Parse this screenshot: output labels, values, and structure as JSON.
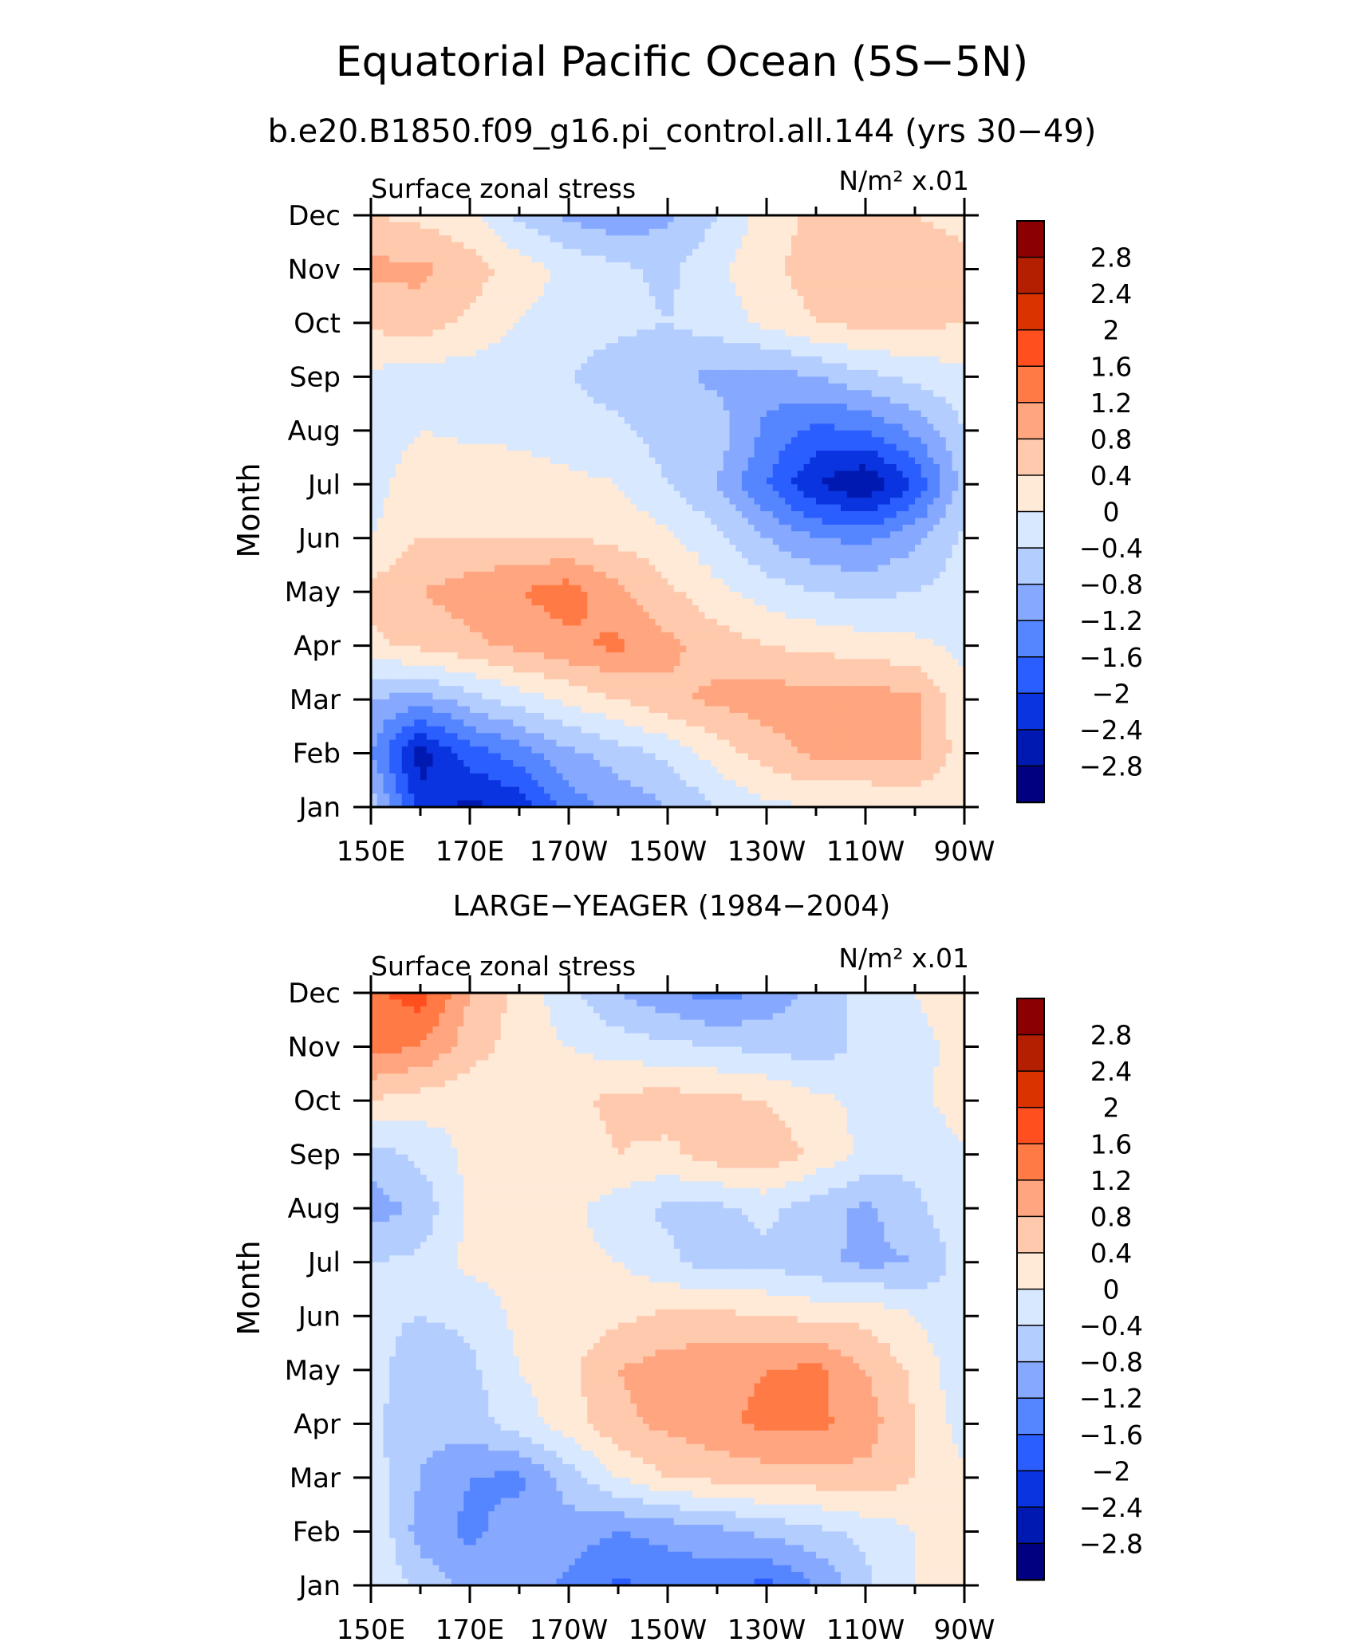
{
  "figure": {
    "title": "Equatorial Pacific Ocean (5S−5N)",
    "subtitle": "b.e20.B1850.f09_g16.pi_control.all.144 (yrs 30−49)"
  },
  "colorscale": {
    "levels": [
      "2.8",
      "2.4",
      "2",
      "1.6",
      "1.2",
      "0.8",
      "0.4",
      "0",
      "−0.4",
      "−0.8",
      "−1.2",
      "−1.6",
      "−2",
      "−2.4",
      "−2.8"
    ],
    "colors": [
      "#8b0000",
      "#b31f00",
      "#db3300",
      "#ff4f1f",
      "#ff7a45",
      "#ffa57f",
      "#ffc9ad",
      "#ffe9d7",
      "#d8e8ff",
      "#b4cdff",
      "#86a9ff",
      "#5585ff",
      "#2b5eff",
      "#0a34e0",
      "#0019b0",
      "#000080"
    ]
  },
  "chart_data": [
    {
      "type": "heatmap",
      "panel_title": "",
      "left_label": "Surface zonal stress",
      "right_label": "N/m² x.01",
      "xlabel": "",
      "ylabel": "Month",
      "x_tick_labels": [
        "150E",
        "170E",
        "170W",
        "150W",
        "130W",
        "110W",
        "90W"
      ],
      "x_ticks_lon_east": [
        150,
        170,
        190,
        210,
        230,
        250,
        270
      ],
      "xlim_lon_east": [
        150,
        270
      ],
      "y_tick_labels": [
        "Jan",
        "Feb",
        "Mar",
        "Apr",
        "May",
        "Jun",
        "Jul",
        "Aug",
        "Sep",
        "Oct",
        "Nov",
        "Dec"
      ],
      "ylim_month": [
        1,
        12
      ],
      "x_lon_east": [
        150,
        160,
        170,
        180,
        190,
        200,
        210,
        220,
        230,
        240,
        250,
        260,
        270
      ],
      "z": [
        [
          -0.5,
          -2.2,
          -2.5,
          -2.3,
          -1.4,
          -1.1,
          -0.8,
          -0.4,
          -0.1,
          0.0,
          0.0,
          0.1,
          0.1
        ],
        [
          -1.2,
          -2.6,
          -1.8,
          -1.4,
          -0.9,
          -0.6,
          -0.3,
          0.2,
          0.6,
          0.9,
          0.9,
          0.9,
          0.2
        ],
        [
          -0.8,
          -1.0,
          -0.6,
          -0.2,
          0.1,
          0.4,
          0.7,
          0.9,
          1.0,
          1.0,
          1.0,
          0.9,
          0.1
        ],
        [
          0.3,
          0.5,
          0.7,
          0.9,
          1.1,
          1.3,
          0.9,
          0.6,
          0.4,
          0.3,
          0.2,
          0.1,
          -0.1
        ],
        [
          0.5,
          0.8,
          1.0,
          1.2,
          1.4,
          0.9,
          0.5,
          0.1,
          -0.2,
          -0.4,
          -0.5,
          -0.4,
          -0.2
        ],
        [
          0.0,
          0.4,
          0.4,
          0.4,
          0.4,
          0.3,
          0.1,
          -0.3,
          -0.8,
          -1.2,
          -1.3,
          -0.9,
          -0.3
        ],
        [
          -0.2,
          0.3,
          0.3,
          0.2,
          0.1,
          0.0,
          -0.4,
          -0.8,
          -1.6,
          -2.4,
          -2.8,
          -2.0,
          -0.6
        ],
        [
          -0.3,
          0.0,
          -0.1,
          -0.1,
          -0.2,
          -0.3,
          -0.6,
          -0.6,
          -1.3,
          -1.7,
          -1.6,
          -1.1,
          -0.4
        ],
        [
          -0.1,
          -0.2,
          -0.2,
          -0.3,
          -0.4,
          -0.6,
          -0.7,
          -0.9,
          -1.0,
          -0.8,
          -0.5,
          -0.3,
          -0.1
        ],
        [
          0.5,
          0.6,
          0.3,
          0.0,
          -0.2,
          -0.3,
          -0.4,
          -0.2,
          0.1,
          0.4,
          0.5,
          0.5,
          0.4
        ],
        [
          0.9,
          0.9,
          0.6,
          0.2,
          -0.1,
          -0.3,
          -0.5,
          -0.1,
          0.3,
          0.6,
          0.7,
          0.6,
          0.5
        ],
        [
          0.4,
          0.3,
          0.1,
          -0.5,
          -0.9,
          -1.1,
          -0.9,
          -0.4,
          0.2,
          0.5,
          0.5,
          0.4,
          0.3
        ]
      ]
    },
    {
      "type": "heatmap",
      "panel_title": "LARGE−YEAGER (1984−2004)",
      "left_label": "Surface zonal stress",
      "right_label": "N/m² x.01",
      "xlabel": "",
      "ylabel": "Month",
      "x_tick_labels": [
        "150E",
        "170E",
        "170W",
        "150W",
        "130W",
        "110W",
        "90W"
      ],
      "x_ticks_lon_east": [
        150,
        170,
        190,
        210,
        230,
        250,
        270
      ],
      "xlim_lon_east": [
        150,
        270
      ],
      "y_tick_labels": [
        "Jan",
        "Feb",
        "Mar",
        "Apr",
        "May",
        "Jun",
        "Jul",
        "Aug",
        "Sep",
        "Oct",
        "Nov",
        "Dec"
      ],
      "ylim_month": [
        1,
        12
      ],
      "x_lon_east": [
        150,
        160,
        170,
        180,
        190,
        200,
        210,
        220,
        230,
        240,
        250,
        260,
        270
      ],
      "z": [
        [
          0.0,
          -0.5,
          -0.9,
          -0.9,
          -1.3,
          -1.7,
          -1.4,
          -1.5,
          -1.7,
          -1.2,
          -0.5,
          0.0,
          0.1
        ],
        [
          0.0,
          -1.0,
          -1.3,
          -1.0,
          -1.0,
          -1.2,
          -1.1,
          -0.9,
          -0.7,
          -0.5,
          -0.3,
          0.0,
          0.1
        ],
        [
          -0.2,
          -0.8,
          -1.2,
          -1.3,
          -0.6,
          0.0,
          0.4,
          0.5,
          0.6,
          0.6,
          0.7,
          0.4,
          0.1
        ],
        [
          -0.3,
          -0.7,
          -0.6,
          -0.2,
          0.2,
          0.7,
          0.9,
          1.1,
          1.3,
          1.3,
          1.0,
          0.4,
          -0.2
        ],
        [
          -0.2,
          -0.7,
          -0.5,
          0.0,
          0.3,
          0.8,
          1.0,
          1.1,
          1.2,
          1.3,
          0.8,
          0.3,
          -0.3
        ],
        [
          -0.3,
          -0.4,
          -0.3,
          0.1,
          0.2,
          0.3,
          0.5,
          0.5,
          0.4,
          0.3,
          0.3,
          0.0,
          -0.3
        ],
        [
          -0.4,
          -0.3,
          0.1,
          0.2,
          0.1,
          0.0,
          -0.3,
          -0.6,
          -0.5,
          -0.7,
          -0.9,
          -0.8,
          -0.2
        ],
        [
          -1.0,
          -0.7,
          0.1,
          0.2,
          0.1,
          -0.2,
          -0.5,
          -0.5,
          -0.3,
          -0.6,
          -0.9,
          -0.5,
          -0.1
        ],
        [
          -0.6,
          -0.3,
          0.1,
          0.2,
          0.2,
          0.4,
          0.3,
          0.6,
          0.7,
          0.3,
          -0.1,
          -0.3,
          -0.1
        ],
        [
          0.4,
          0.2,
          0.1,
          0.1,
          0.3,
          0.5,
          0.6,
          0.5,
          0.4,
          0.1,
          -0.1,
          -0.2,
          0.3
        ],
        [
          1.4,
          1.2,
          0.6,
          0.2,
          0.0,
          -0.2,
          -0.3,
          -0.4,
          -0.5,
          -0.6,
          -0.3,
          -0.1,
          0.1
        ],
        [
          1.5,
          1.8,
          0.8,
          0.3,
          -0.3,
          -0.8,
          -1.1,
          -1.4,
          -1.1,
          -0.6,
          -0.3,
          0.0,
          0.2
        ]
      ]
    }
  ]
}
